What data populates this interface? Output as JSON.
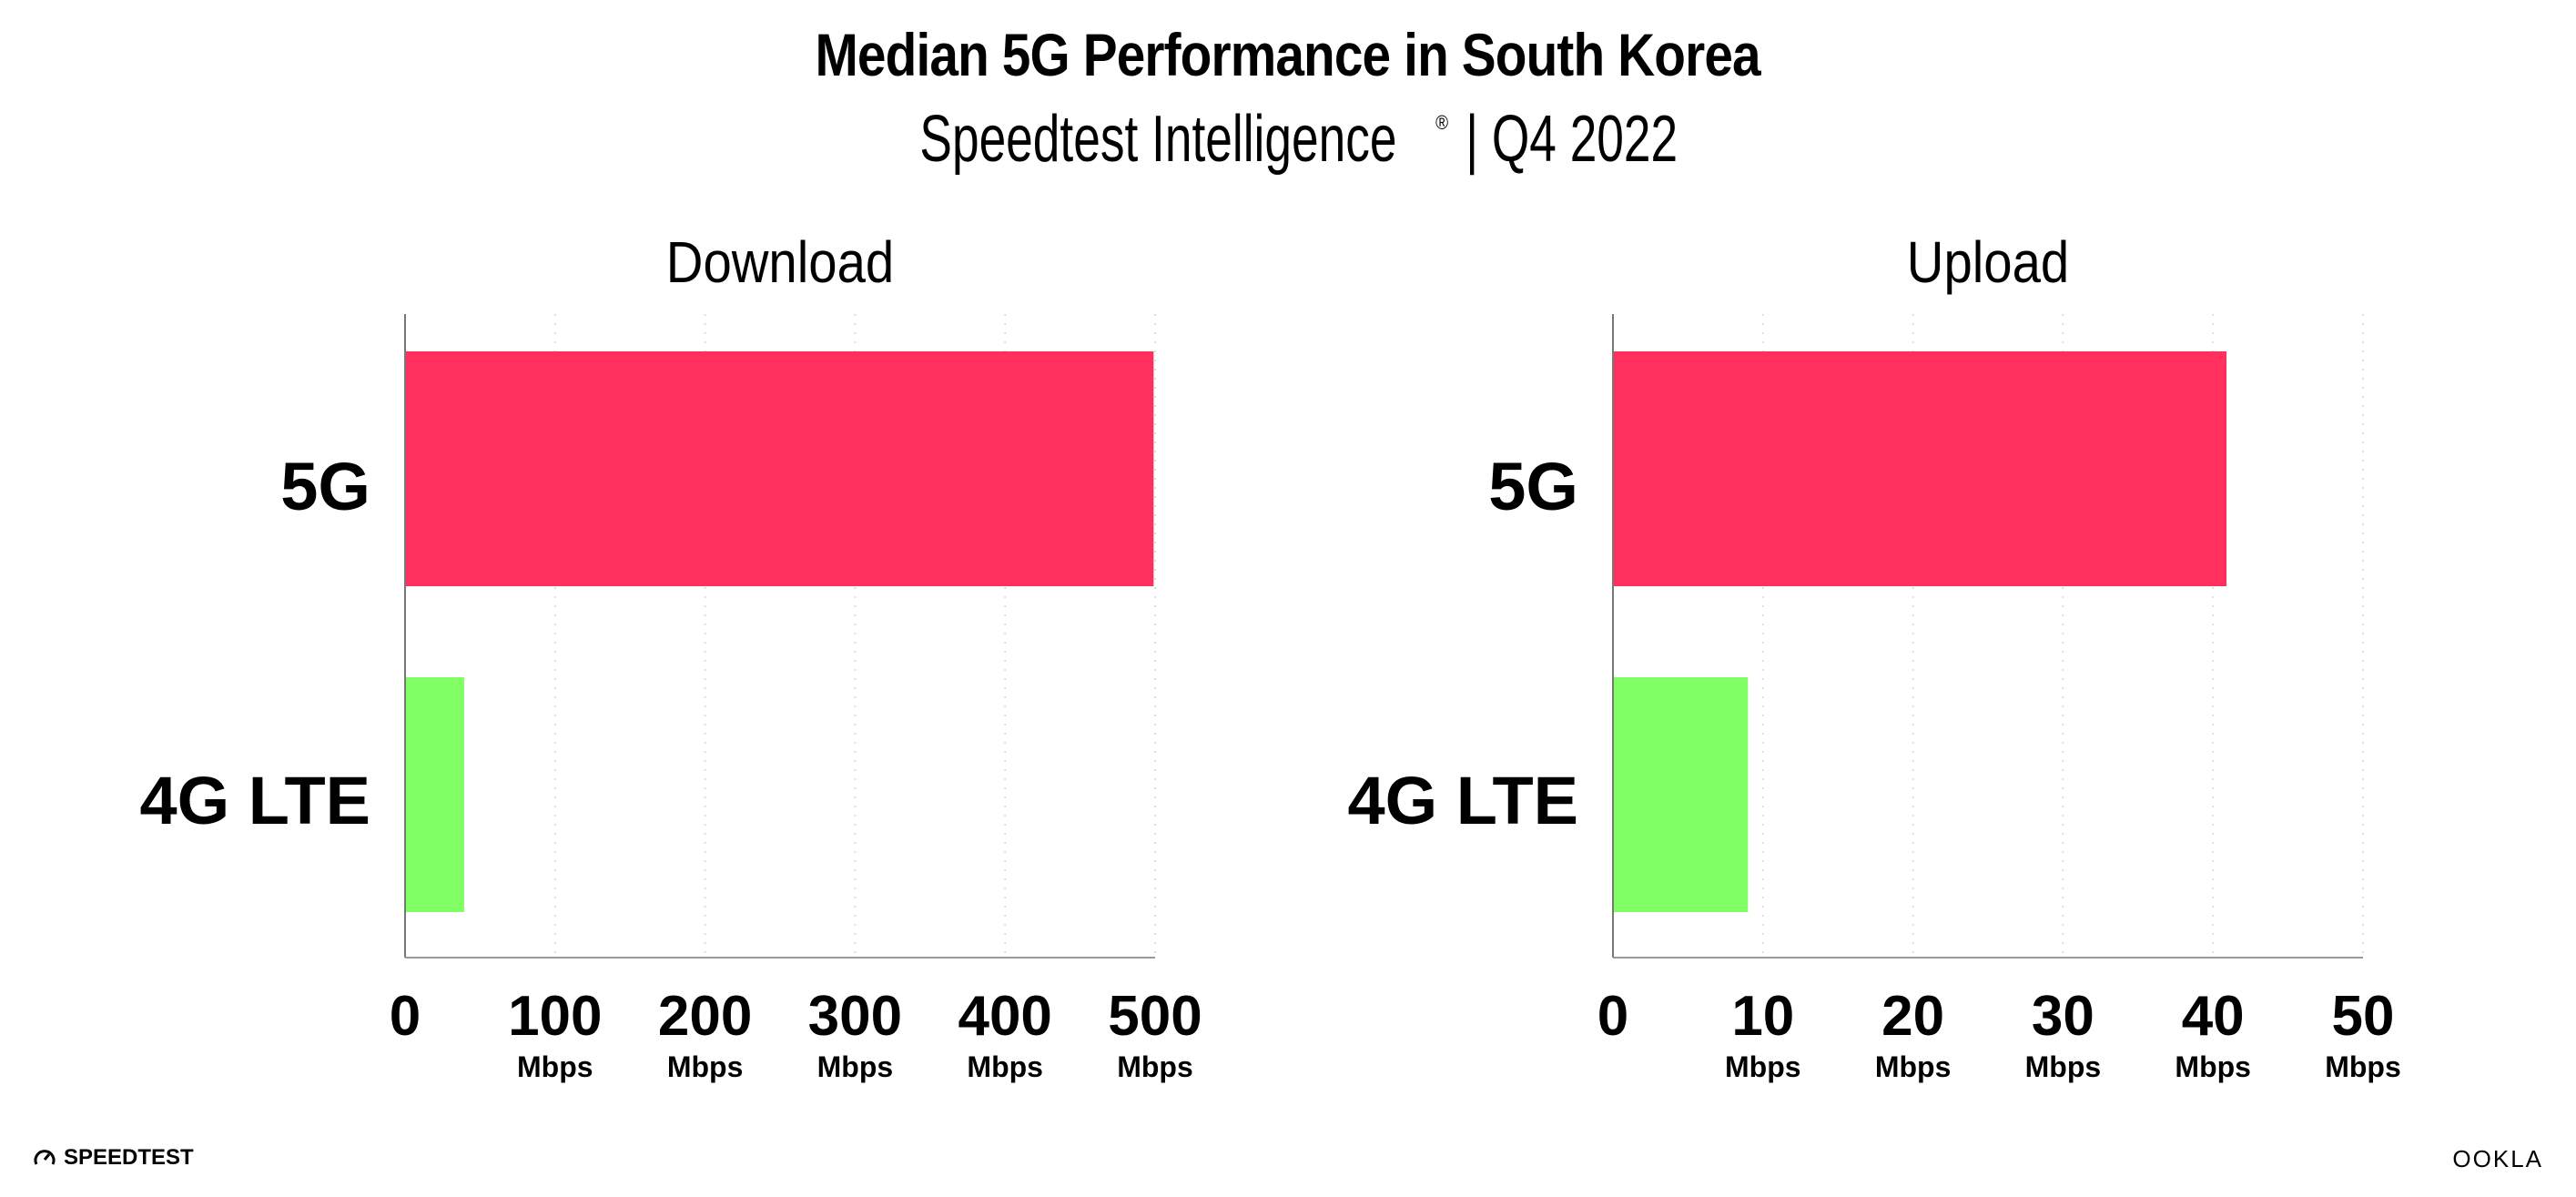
{
  "title": "Median 5G Performance in South Korea",
  "subtitle": "Speedtest Intelligence",
  "subtitle_mark": "®",
  "subtitle_suffix": " | Q4 2022",
  "footer": {
    "left_logo": "SPEEDTEST",
    "right_logo": "OOKLA",
    "icon": "speedometer-icon"
  },
  "colors": {
    "5G": "#ff2f5e",
    "4G LTE": "#80ff64"
  },
  "chart_data": [
    {
      "type": "bar",
      "orientation": "horizontal",
      "title": "Download",
      "categories": [
        "5G",
        "4G LTE"
      ],
      "values": [
        499,
        39.4
      ],
      "xlim": [
        0,
        500
      ],
      "ticks": [
        {
          "value": 0,
          "label": "0",
          "unit": ""
        },
        {
          "value": 100,
          "label": "100",
          "unit": "Mbps"
        },
        {
          "value": 200,
          "label": "200",
          "unit": "Mbps"
        },
        {
          "value": 300,
          "label": "300",
          "unit": "Mbps"
        },
        {
          "value": 400,
          "label": "400",
          "unit": "Mbps"
        },
        {
          "value": 500,
          "label": "500",
          "unit": "Mbps"
        }
      ],
      "grid": true
    },
    {
      "type": "bar",
      "orientation": "horizontal",
      "title": "Upload",
      "categories": [
        "5G",
        "4G LTE"
      ],
      "values": [
        40.9,
        9.0
      ],
      "xlim": [
        0,
        50
      ],
      "ticks": [
        {
          "value": 0,
          "label": "0",
          "unit": ""
        },
        {
          "value": 10,
          "label": "10",
          "unit": "Mbps"
        },
        {
          "value": 20,
          "label": "20",
          "unit": "Mbps"
        },
        {
          "value": 30,
          "label": "30",
          "unit": "Mbps"
        },
        {
          "value": 40,
          "label": "40",
          "unit": "Mbps"
        },
        {
          "value": 50,
          "label": "50",
          "unit": "Mbps"
        }
      ],
      "grid": true
    }
  ]
}
